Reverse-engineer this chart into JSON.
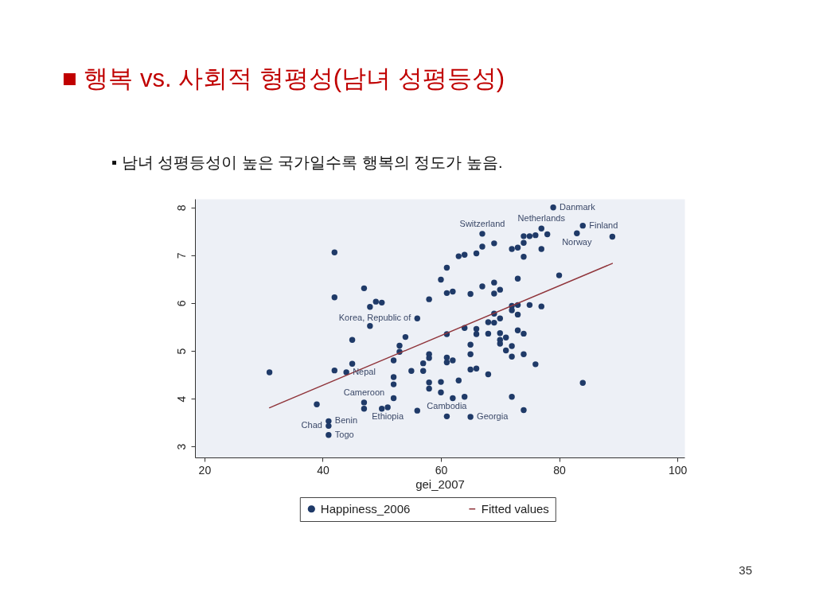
{
  "chart_data": {
    "type": "scatter",
    "title": "■ 행복 vs. 사회적 형평성(남녀 성평등성)",
    "subtitle": "▪ 남녀 성평등성이 높은 국가일수록 행복의 정도가 높음.",
    "xlabel": "gei_2007",
    "xlim": [
      18.4,
      101.2
    ],
    "ylim": [
      2.77,
      8.18
    ],
    "xticks": [
      20,
      40,
      60,
      80,
      100
    ],
    "yticks": [
      3,
      4,
      5,
      6,
      7,
      8
    ],
    "legend": "bottom",
    "series": [
      {
        "name": "Happiness_2006",
        "color": "#1f3a68",
        "marker": "circle",
        "x": [
          79,
          67,
          77,
          84,
          83,
          89,
          74,
          75,
          76,
          78,
          74,
          69,
          67,
          72,
          73,
          77,
          74,
          66,
          64,
          63,
          42,
          61,
          60,
          80,
          73,
          69,
          67,
          70,
          69,
          65,
          62,
          61,
          47,
          42,
          49,
          50,
          48,
          58,
          72,
          73,
          75,
          77,
          72,
          73,
          69,
          56,
          70,
          68,
          69,
          48,
          64,
          66,
          61,
          66,
          68,
          70,
          71,
          70,
          70,
          73,
          74,
          72,
          71,
          72,
          74,
          76,
          65,
          65,
          61,
          61,
          62,
          65,
          66,
          68,
          60,
          63,
          60,
          62,
          64,
          72,
          84,
          74,
          61,
          65,
          45,
          54,
          53,
          53,
          52,
          58,
          58,
          57,
          45,
          31,
          42,
          44,
          52,
          52,
          55,
          57,
          58,
          58,
          52,
          39,
          47,
          47,
          50,
          51,
          56,
          41,
          41,
          41
        ],
        "values": [
          8.0,
          7.45,
          7.56,
          7.62,
          7.46,
          7.39,
          7.4,
          7.4,
          7.42,
          7.44,
          7.26,
          7.25,
          7.18,
          7.13,
          7.16,
          7.13,
          6.97,
          7.04,
          7.01,
          6.98,
          7.06,
          6.74,
          6.49,
          6.58,
          6.51,
          6.43,
          6.35,
          6.28,
          6.2,
          6.19,
          6.24,
          6.21,
          6.31,
          6.12,
          6.03,
          6.01,
          5.92,
          6.08,
          5.94,
          5.96,
          5.96,
          5.93,
          5.85,
          5.76,
          5.78,
          5.68,
          5.68,
          5.6,
          5.59,
          5.52,
          5.48,
          5.46,
          5.35,
          5.35,
          5.36,
          5.37,
          5.28,
          5.23,
          5.15,
          5.43,
          5.36,
          5.1,
          5.01,
          4.88,
          4.93,
          4.72,
          5.13,
          4.93,
          4.86,
          4.76,
          4.8,
          4.61,
          4.63,
          4.51,
          4.35,
          4.38,
          4.13,
          4.01,
          4.04,
          4.04,
          4.33,
          3.76,
          3.63,
          3.62,
          5.23,
          5.29,
          5.11,
          4.98,
          4.8,
          4.93,
          4.85,
          4.74,
          4.73,
          4.55,
          4.59,
          4.55,
          4.45,
          4.3,
          4.58,
          4.58,
          4.34,
          4.21,
          4.01,
          3.88,
          3.92,
          3.79,
          3.79,
          3.82,
          3.75,
          3.53,
          3.43,
          3.24
        ]
      },
      {
        "name": "Fitted values",
        "type": "line",
        "color": "#90353b",
        "line_style": "solid",
        "x": [
          31,
          89
        ],
        "values": [
          3.81,
          6.83
        ]
      }
    ],
    "annotations": [
      {
        "text": "Danmark",
        "x": 79,
        "y": 8.0
      },
      {
        "text": "Finland",
        "x": 84,
        "y": 7.62
      },
      {
        "text": "Netherlands",
        "x": 77,
        "y": 7.56
      },
      {
        "text": "Norway",
        "x": 83,
        "y": 7.46
      },
      {
        "text": "Switzerland",
        "x": 67,
        "y": 7.45
      },
      {
        "text": "Korea, Republic of",
        "x": 56,
        "y": 5.68
      },
      {
        "text": "Nepal",
        "x": 44,
        "y": 4.55
      },
      {
        "text": "Cameroon",
        "x": 47,
        "y": 3.92
      },
      {
        "text": "Ethiopia",
        "x": 51,
        "y": 3.82
      },
      {
        "text": "Cambodia",
        "x": 61,
        "y": 3.63
      },
      {
        "text": "Georgia",
        "x": 65,
        "y": 3.62
      },
      {
        "text": "Benin",
        "x": 41,
        "y": 3.53
      },
      {
        "text": "Chad",
        "x": 41,
        "y": 3.43
      },
      {
        "text": "Togo",
        "x": 41,
        "y": 3.24
      },
      "35"
    ]
  }
}
